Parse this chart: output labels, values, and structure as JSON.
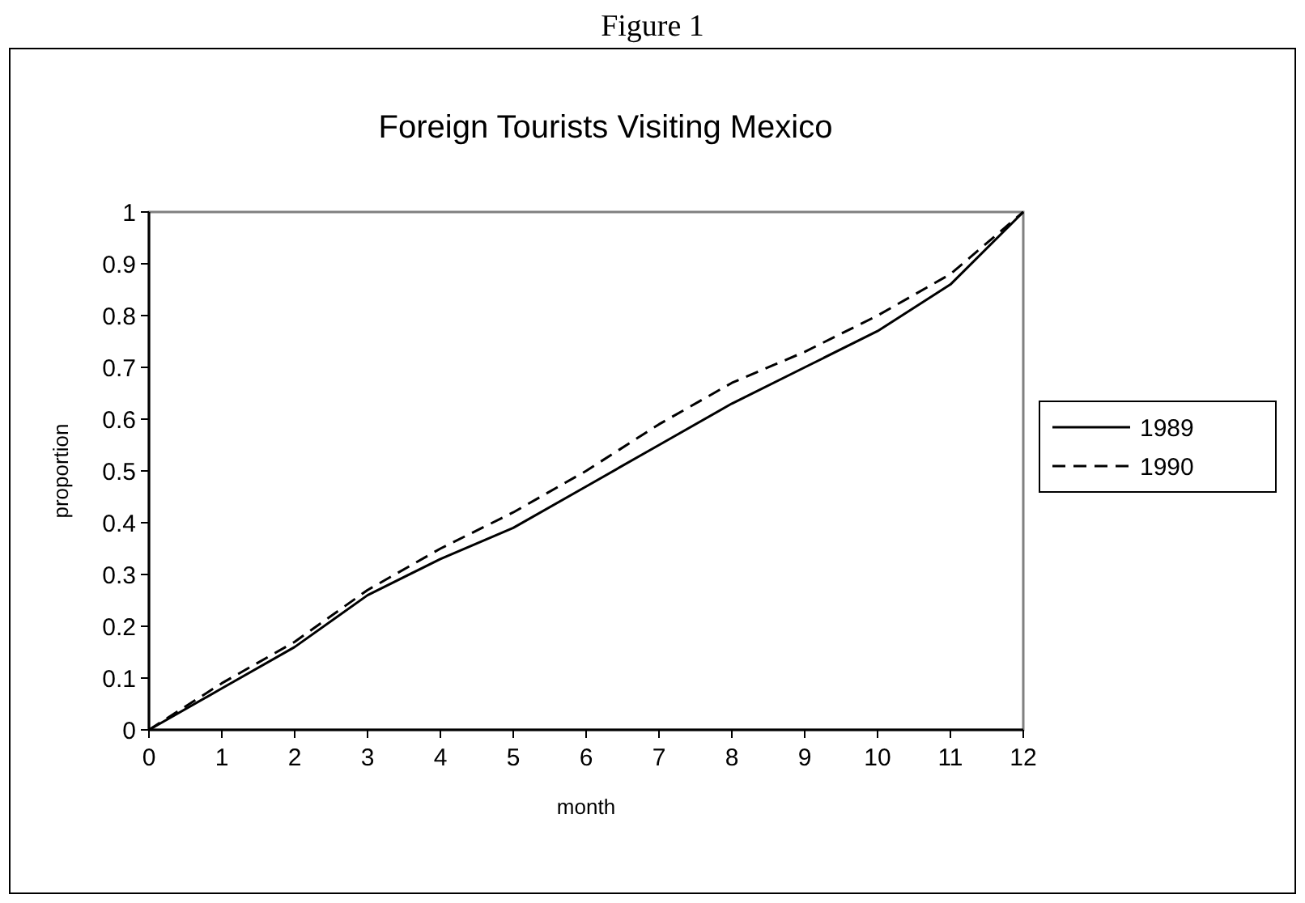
{
  "chart_data": {
    "type": "line",
    "title": "Foreign Tourists Visiting Mexico",
    "annotations": [
      "Figure 1"
    ],
    "xlabel": "month",
    "ylabel": "proportion",
    "x": [
      0,
      1,
      2,
      3,
      4,
      5,
      6,
      7,
      8,
      9,
      10,
      11,
      12
    ],
    "series": [
      {
        "name": "1989",
        "color": "#000000",
        "line_style": "solid",
        "values": [
          0,
          0.08,
          0.16,
          0.26,
          0.33,
          0.39,
          0.47,
          0.55,
          0.63,
          0.7,
          0.77,
          0.86,
          1.0
        ]
      },
      {
        "name": "1990",
        "color": "#000000",
        "line_style": "dashed",
        "values": [
          0,
          0.09,
          0.17,
          0.27,
          0.35,
          0.42,
          0.5,
          0.59,
          0.67,
          0.73,
          0.8,
          0.88,
          1.0
        ]
      }
    ],
    "xlim": [
      0,
      12
    ],
    "xticks": [
      0,
      1,
      2,
      3,
      4,
      5,
      6,
      7,
      8,
      9,
      10,
      11,
      12
    ],
    "ylim": [
      0,
      1
    ],
    "yticks": [
      0,
      0.1,
      0.2,
      0.3,
      0.4,
      0.5,
      0.6,
      0.7,
      0.8,
      0.9,
      1
    ],
    "grid": false,
    "legend": "right",
    "marker": "none"
  }
}
